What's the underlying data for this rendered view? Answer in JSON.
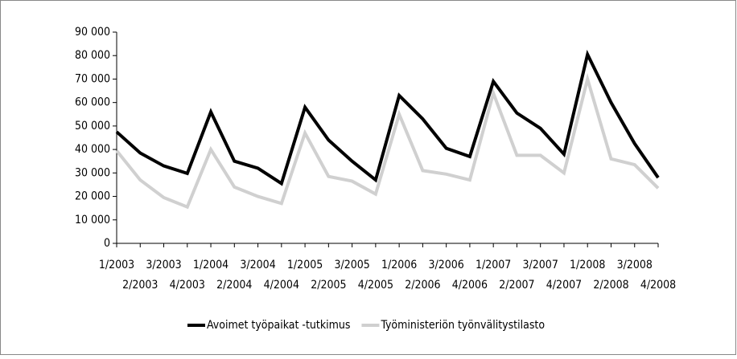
{
  "chart_data": {
    "type": "line",
    "categories": [
      "1/2003",
      "2/2003",
      "3/2003",
      "4/2003",
      "1/2004",
      "2/2004",
      "3/2004",
      "4/2004",
      "1/2005",
      "2/2005",
      "3/2005",
      "4/2005",
      "1/2006",
      "2/2006",
      "3/2006",
      "4/2006",
      "1/2007",
      "2/2007",
      "3/2007",
      "4/2007",
      "1/2008",
      "2/2008",
      "3/2008",
      "4/2008"
    ],
    "series": [
      {
        "name": "Avoimet työpaikat -tutkimus",
        "color": "#000000",
        "values": [
          47500,
          38500,
          33000,
          29800,
          56000,
          35000,
          32000,
          25500,
          58000,
          44000,
          35000,
          27000,
          63000,
          53000,
          40500,
          37000,
          69000,
          55500,
          49000,
          38000,
          80500,
          60000,
          42500,
          28000
        ]
      },
      {
        "name": "Työministeriön työnvälitystilasto",
        "color": "#d0d0d0",
        "values": [
          39500,
          27000,
          19500,
          15500,
          40000,
          24000,
          20000,
          17000,
          47000,
          28500,
          26500,
          21000,
          55000,
          31000,
          29500,
          27000,
          64000,
          37500,
          37500,
          30000,
          70000,
          36000,
          33500,
          23500
        ]
      }
    ],
    "ylim": [
      0,
      90000
    ],
    "yticks": [
      0,
      {
        "value": 10000,
        "label": "10 000"
      },
      {
        "value": 20000,
        "label": "20 000"
      },
      {
        "value": 30000,
        "label": "30 000"
      },
      {
        "value": 40000,
        "label": "40 000"
      },
      {
        "value": 50000,
        "label": "50 000"
      },
      {
        "value": 60000,
        "label": "60 000"
      },
      {
        "value": 70000,
        "label": "70 000"
      },
      {
        "value": 80000,
        "label": "80 000"
      },
      {
        "value": 90000,
        "label": "90 000"
      }
    ],
    "legend": "bottom"
  }
}
